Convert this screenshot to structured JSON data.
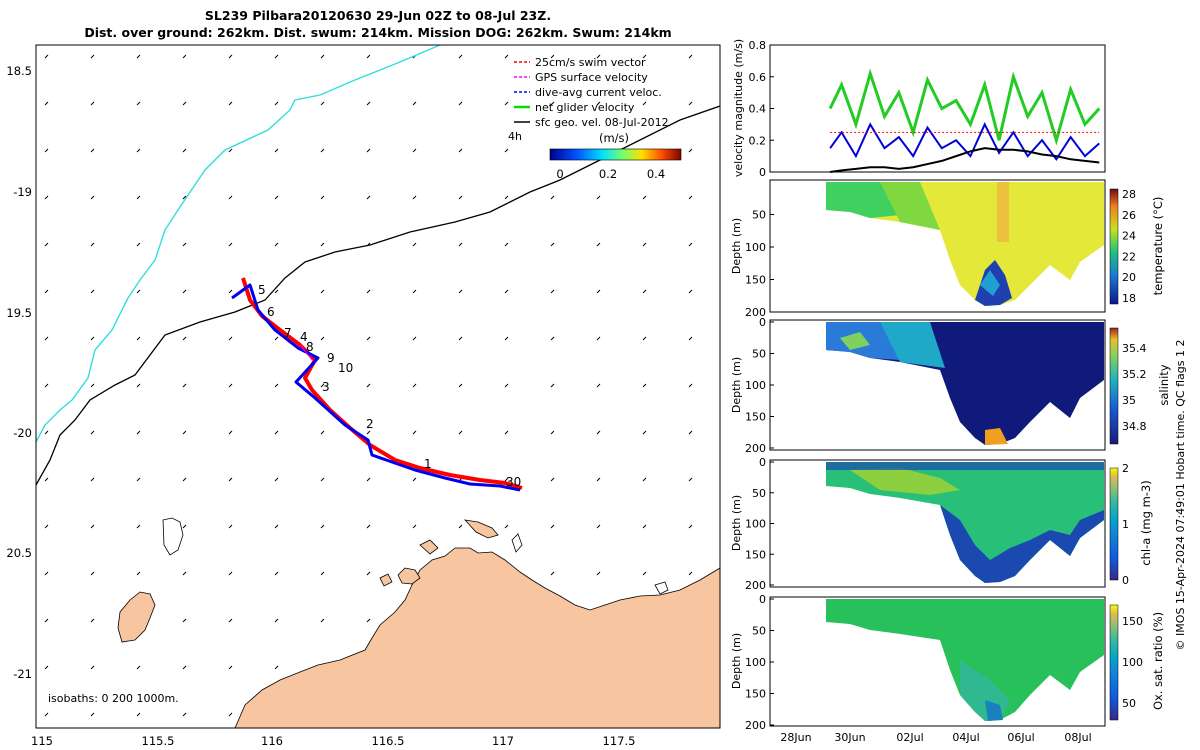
{
  "title": {
    "line1": "SL239 Pilbara20120630 29-Jun 02Z to 08-Jul 23Z.",
    "line2": "Dist. over ground: 262km. Dist. swum: 214km. Mission DOG: 262km. Swum: 214km"
  },
  "map": {
    "lon_ticks": [
      "115",
      "115.5",
      "116",
      "116.5",
      "117",
      "117.5"
    ],
    "lat_ticks": [
      "18.5",
      "-19",
      "19.5",
      "-20",
      "20.5",
      "-21"
    ],
    "legend": [
      {
        "label": "25cm/s swim vector",
        "color": "#ff0000"
      },
      {
        "label": "GPS surface velocity",
        "color": "#ff00ff"
      },
      {
        "label": "dive-avg current veloc.",
        "color": "#0000ff"
      },
      {
        "label": "net glider velocity",
        "color": "#00dd00"
      },
      {
        "label": "sfc geo. vel. 08-Jul-2012",
        "color": "#000000"
      }
    ],
    "legend_extra": "4h",
    "colorbar": {
      "title": "(m/s)",
      "ticks": [
        "0",
        "0.2",
        "0.4"
      ]
    },
    "isobaths_label": "isobaths: 0   200  1000m.",
    "day_labels": [
      "1",
      "2",
      "3",
      "4",
      "5",
      "6",
      "7",
      "8",
      "9",
      "10",
      "30"
    ],
    "colors": {
      "land": "#f7c59f",
      "isobath_200": "#000000",
      "isobath_1000": "#33dddd",
      "track_red": "#ff0000",
      "track_blue": "#0000ff"
    }
  },
  "chart_data": [
    {
      "type": "line",
      "ylabel": "velocity magnitude (m/s)",
      "ylim": [
        0,
        0.8
      ],
      "yticks": [
        "0",
        "0.2",
        "0.4",
        "0.6",
        "0.8"
      ],
      "x": [
        29.6,
        30.0,
        30.5,
        31.0,
        31.5,
        32.0,
        32.5,
        33.0,
        33.5,
        34.0,
        34.5,
        35.0,
        35.5,
        36.0,
        36.5,
        37.0,
        37.5,
        38.0,
        38.5,
        39.0
      ],
      "series": [
        {
          "color": "#22cc22",
          "values": [
            0.4,
            0.55,
            0.3,
            0.62,
            0.35,
            0.5,
            0.25,
            0.58,
            0.4,
            0.45,
            0.3,
            0.55,
            0.2,
            0.6,
            0.35,
            0.5,
            0.2,
            0.52,
            0.3,
            0.4
          ]
        },
        {
          "color": "#0000dd",
          "values": [
            0.15,
            0.25,
            0.1,
            0.3,
            0.15,
            0.22,
            0.1,
            0.28,
            0.15,
            0.2,
            0.1,
            0.3,
            0.12,
            0.25,
            0.1,
            0.2,
            0.08,
            0.22,
            0.1,
            0.18
          ]
        },
        {
          "color": "#000000",
          "values": [
            0.0,
            0.01,
            0.02,
            0.03,
            0.03,
            0.02,
            0.03,
            0.05,
            0.07,
            0.1,
            0.13,
            0.15,
            0.14,
            0.14,
            0.13,
            0.11,
            0.1,
            0.08,
            0.07,
            0.06
          ]
        },
        {
          "color": "#ff0000",
          "values": [
            0.25,
            0.25,
            0.25,
            0.25,
            0.25,
            0.25,
            0.25,
            0.25,
            0.25,
            0.25,
            0.25,
            0.25,
            0.25,
            0.25,
            0.25,
            0.25,
            0.25,
            0.25,
            0.25,
            0.25
          ]
        }
      ]
    },
    {
      "type": "heatmap",
      "ylabel": "Depth (m)",
      "yticks": [
        "50",
        "100",
        "150",
        "200"
      ],
      "colorbar_label": "temperature (°C)",
      "cticks": [
        "28",
        "26",
        "24",
        "22",
        "20",
        "18"
      ]
    },
    {
      "type": "heatmap",
      "ylabel": "Depth (m)",
      "yticks": [
        "0",
        "50",
        "100",
        "150",
        "200"
      ],
      "colorbar_label": "salinity",
      "cticks": [
        "35.4",
        "35.2",
        "35",
        "34.8"
      ]
    },
    {
      "type": "heatmap",
      "ylabel": "Depth (m)",
      "yticks": [
        "0",
        "50",
        "100",
        "150",
        "200"
      ],
      "colorbar_label": "chl-a (mg m-3)",
      "cticks": [
        "2",
        "1",
        "0"
      ]
    },
    {
      "type": "heatmap",
      "ylabel": "Depth (m)",
      "yticks": [
        "0",
        "50",
        "100",
        "150",
        "200"
      ],
      "colorbar_label": "Ox. sat. ratio (%)",
      "cticks": [
        "150",
        "100",
        "50"
      ],
      "xticks": [
        "28Jun",
        "30Jun",
        "02Jul",
        "04Jul",
        "06Jul",
        "08Jul"
      ]
    }
  ],
  "side_note": "© IMOS 15-Apr-2024 07:49:01 Hobart time. QC flags 1  2"
}
